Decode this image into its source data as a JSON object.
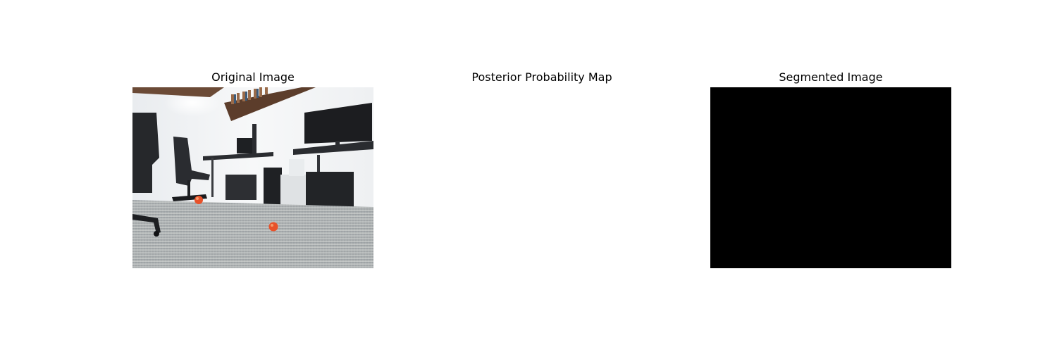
{
  "figure": {
    "panels": [
      {
        "title": "Original Image",
        "content": "photo"
      },
      {
        "title": "Posterior Probability Map",
        "content": "blank"
      },
      {
        "title": "Segmented Image",
        "content": "solid",
        "fill": "#000000"
      }
    ]
  },
  "colors": {
    "background": "#ffffff",
    "segmented_fill": "#000000",
    "ball_orange": "#e8522a"
  }
}
